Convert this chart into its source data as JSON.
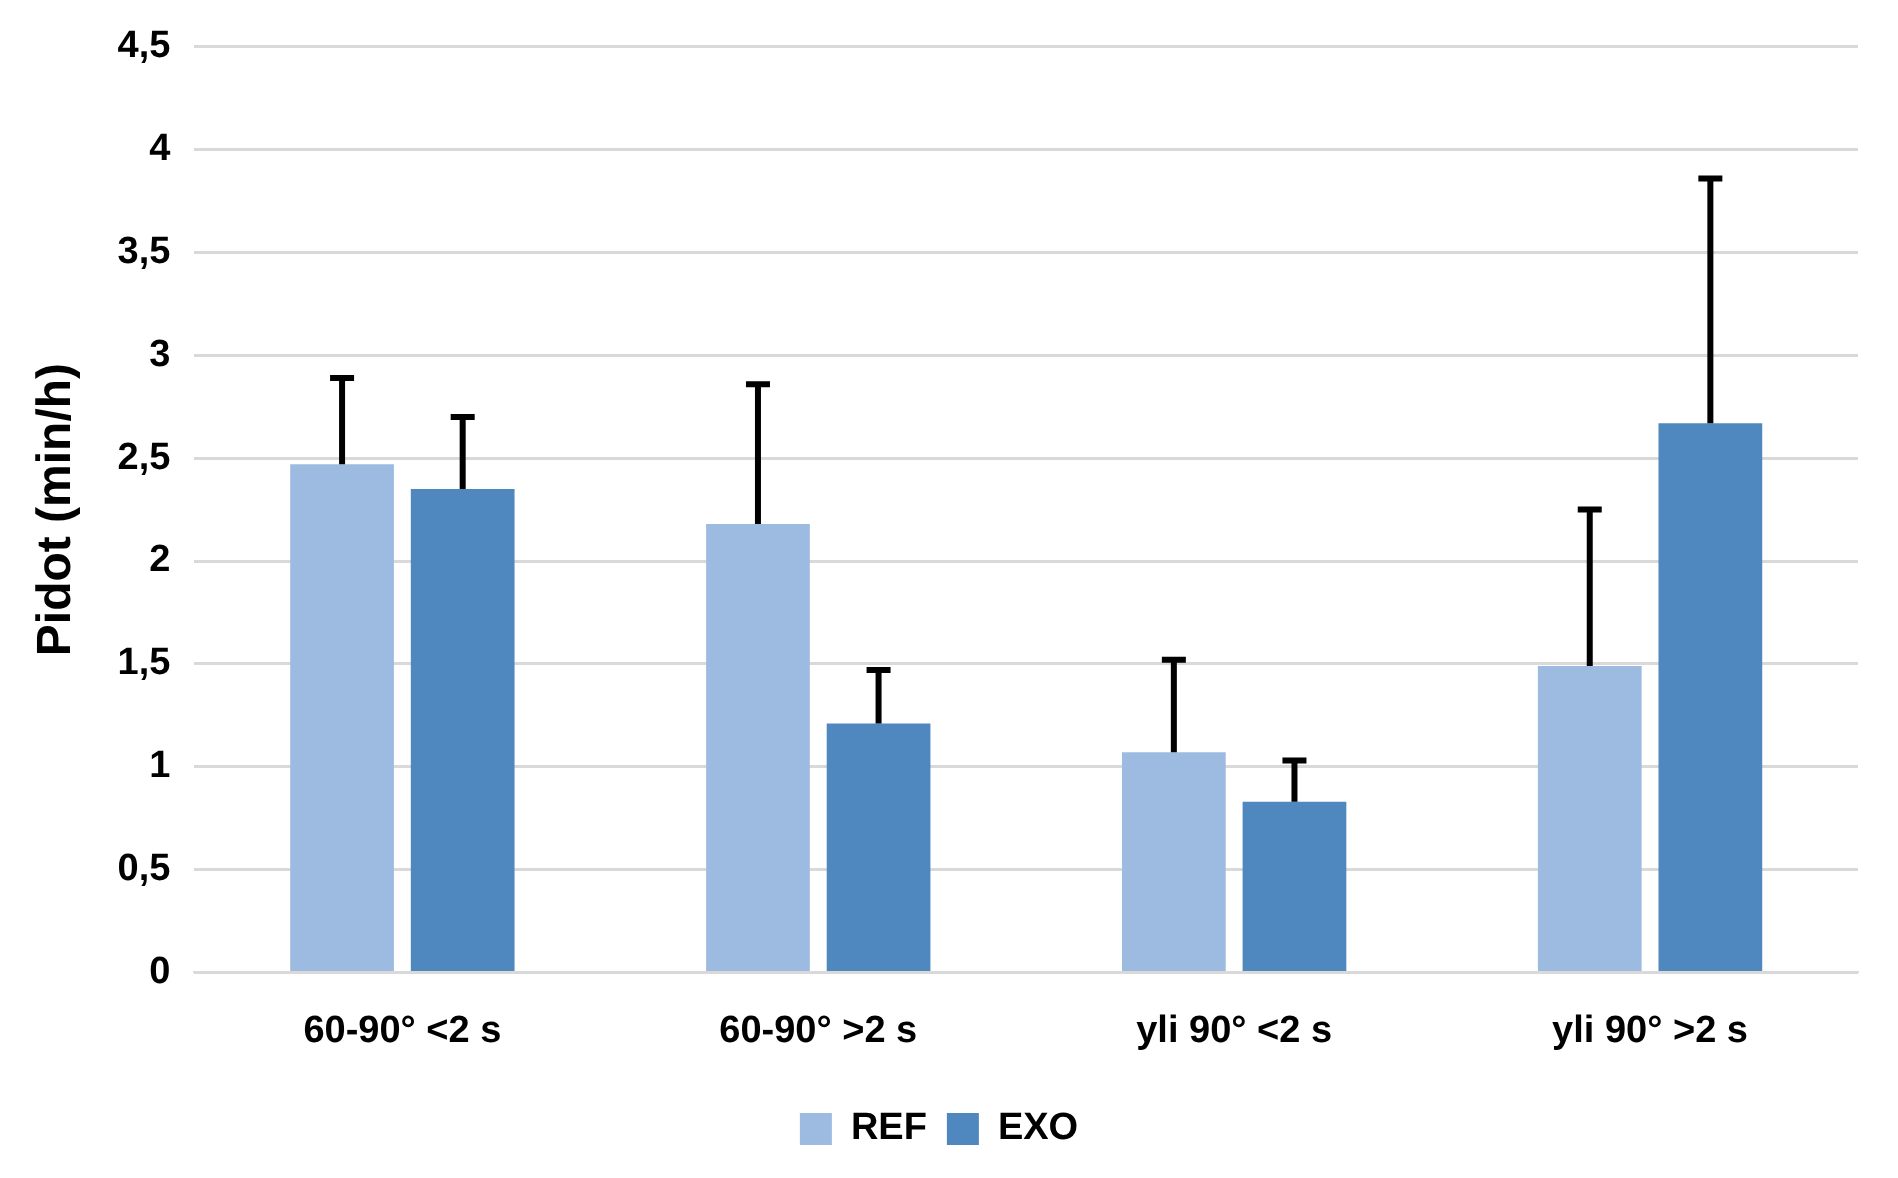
{
  "chart_data": {
    "type": "bar",
    "ylabel": "Pidot (min/h)",
    "categories": [
      "60-90° <2 s",
      "60-90° >2 s",
      "yli 90° <2 s",
      "yli 90° >2 s"
    ],
    "series": [
      {
        "name": "REF",
        "color": "#9dbbe1",
        "values": [
          2.47,
          2.18,
          1.07,
          1.49
        ],
        "errors": [
          [
            2.47,
            2.89
          ],
          [
            2.18,
            2.86
          ],
          [
            1.07,
            1.52
          ],
          [
            1.49,
            2.25
          ]
        ]
      },
      {
        "name": "EXO",
        "color": "#4f88bf",
        "values": [
          2.35,
          1.21,
          0.83,
          2.67
        ],
        "errors": [
          [
            2.35,
            2.7
          ],
          [
            1.21,
            1.47
          ],
          [
            0.83,
            1.03
          ],
          [
            2.67,
            3.86
          ]
        ]
      }
    ],
    "ylim": [
      0,
      4.5
    ],
    "yticks": [
      0,
      {
        "value": 0.5,
        "label": "0,5"
      },
      1,
      {
        "value": 1.5,
        "label": "1,5"
      },
      2,
      {
        "value": 2.5,
        "label": "2,5"
      },
      3,
      {
        "value": 3.5,
        "label": "3,5"
      },
      4,
      {
        "value": 4.5,
        "label": "4,5"
      }
    ],
    "grid": "y",
    "legend": "bottom"
  }
}
